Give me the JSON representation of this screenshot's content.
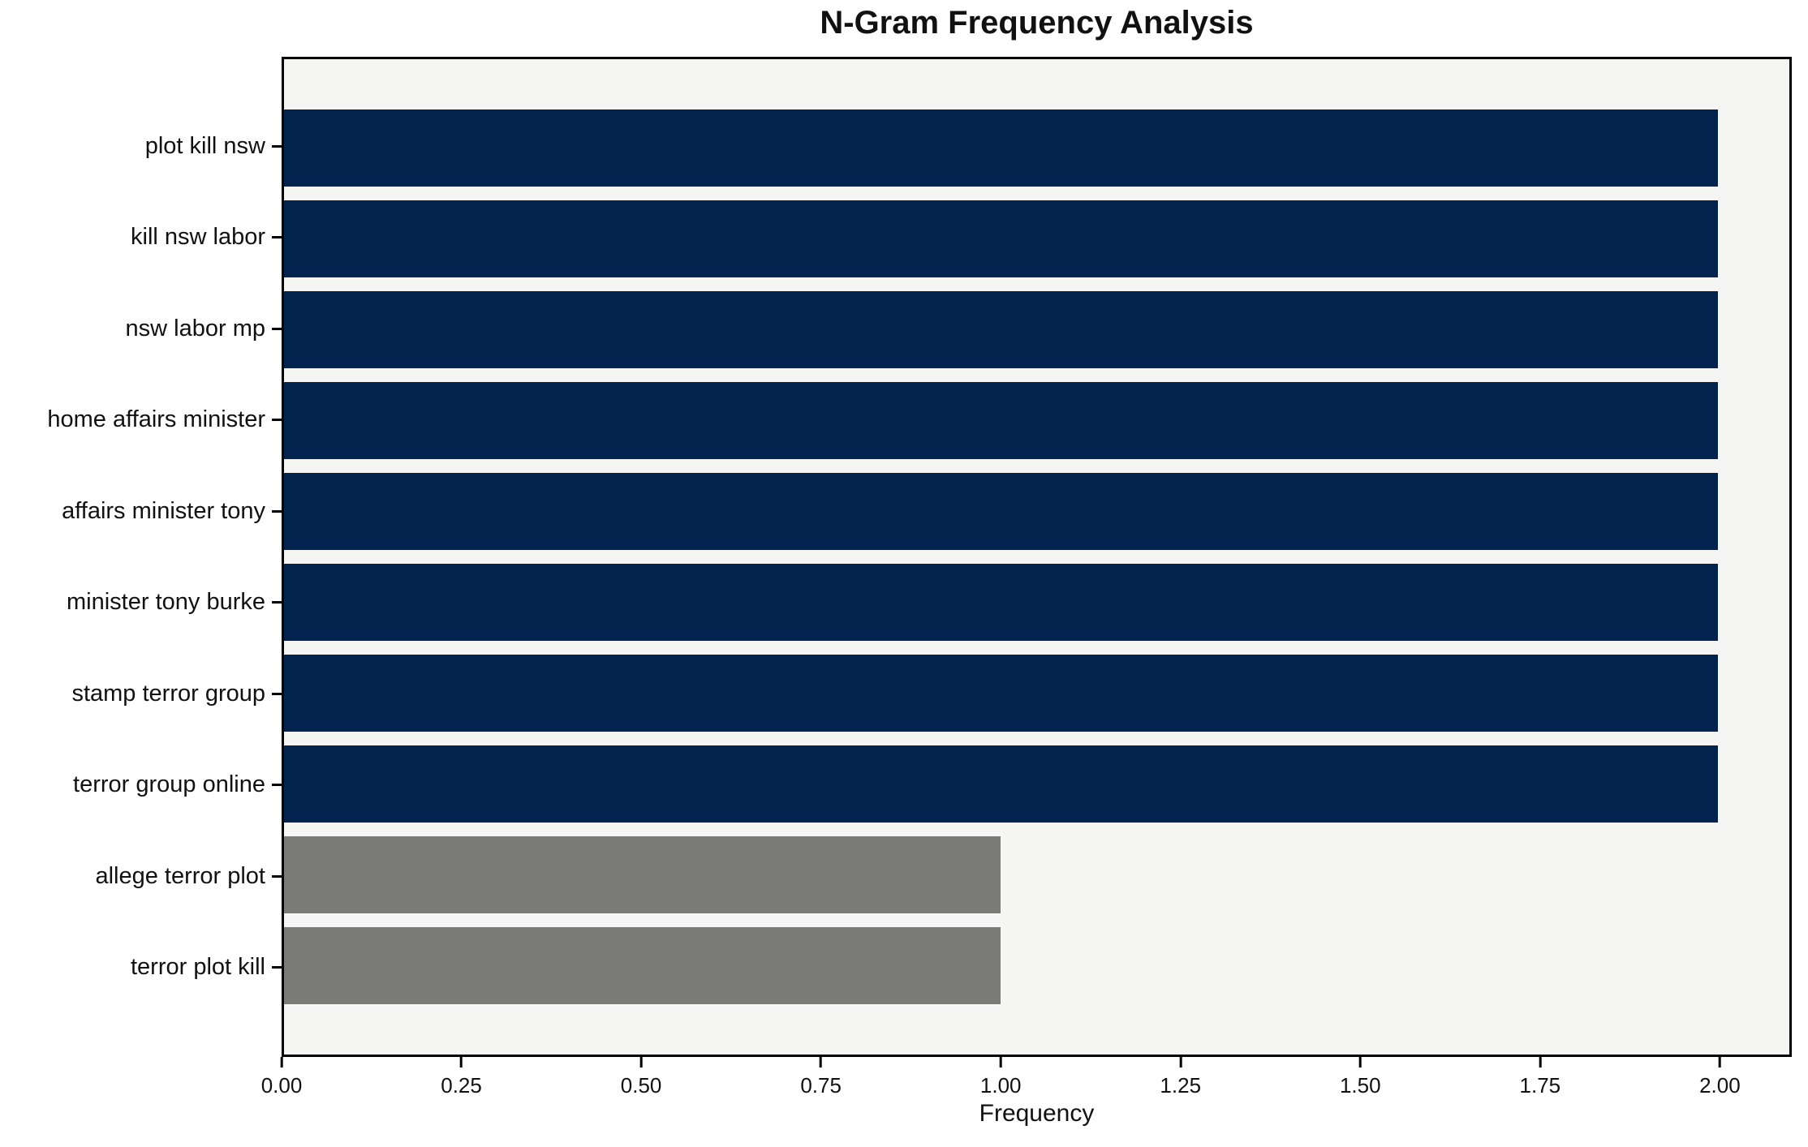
{
  "chart_data": {
    "type": "bar",
    "orientation": "horizontal",
    "title": "N-Gram Frequency Analysis",
    "xlabel": "Frequency",
    "ylabel": "",
    "xlim": [
      0,
      2.1
    ],
    "grid": false,
    "legend": "none",
    "categories": [
      "plot kill nsw",
      "kill nsw labor",
      "nsw labor mp",
      "home affairs minister",
      "affairs minister tony",
      "minister tony burke",
      "stamp terror group",
      "terror group online",
      "allege terror plot",
      "terror plot kill"
    ],
    "values": [
      2,
      2,
      2,
      2,
      2,
      2,
      2,
      2,
      1,
      1
    ],
    "bar_colors": [
      "#02234e",
      "#02234e",
      "#02234e",
      "#02234e",
      "#02234e",
      "#02234e",
      "#02234e",
      "#02234e",
      "#7a7a76",
      "#7a7a76"
    ],
    "x_ticks": [
      {
        "value": 0.0,
        "label": "0.00"
      },
      {
        "value": 0.25,
        "label": "0.25"
      },
      {
        "value": 0.5,
        "label": "0.50"
      },
      {
        "value": 0.75,
        "label": "0.75"
      },
      {
        "value": 1.0,
        "label": "1.00"
      },
      {
        "value": 1.25,
        "label": "1.25"
      },
      {
        "value": 1.5,
        "label": "1.50"
      },
      {
        "value": 1.75,
        "label": "1.75"
      },
      {
        "value": 2.0,
        "label": "2.00"
      }
    ],
    "colors": {
      "plot_background": "#f5f5f3",
      "figure_background": "#ffffff",
      "spine": "#000000",
      "bar_high": "#02234e",
      "bar_low": "#7a7a76"
    }
  }
}
